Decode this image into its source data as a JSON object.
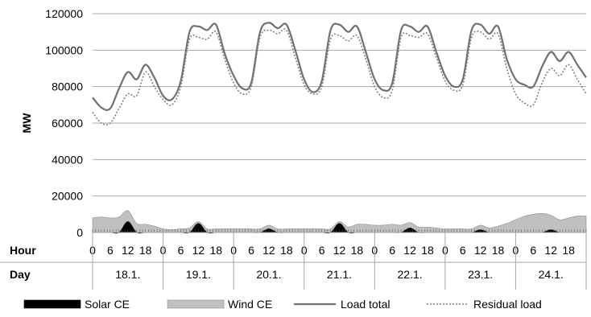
{
  "chart_data": {
    "type": "line",
    "ylabel": "MW",
    "ylim": [
      0,
      120000
    ],
    "y_ticks": [
      "0",
      "20000",
      "40000",
      "60000",
      "80000",
      "100000",
      "120000"
    ],
    "grid": "horizontal",
    "legend_position": "bottom",
    "x_rows": [
      {
        "label": "Hour",
        "ticks": [
          "0",
          "6",
          "12",
          "18"
        ]
      },
      {
        "label": "Day",
        "ticks": [
          "18.1.",
          "19.1.",
          "20.1.",
          "21.1.",
          "22.1.",
          "23.1.",
          "24.1."
        ]
      }
    ],
    "x": [
      0,
      3,
      6,
      9,
      12,
      15,
      18,
      21,
      24,
      27,
      30,
      33,
      36,
      39,
      42,
      45,
      48,
      51,
      54,
      57,
      60,
      63,
      66,
      69,
      72,
      75,
      78,
      81,
      84,
      87,
      90,
      93,
      96,
      99,
      102,
      105,
      108,
      111,
      114,
      117,
      120,
      123,
      126,
      129,
      132,
      135,
      138,
      141,
      144,
      147,
      150,
      153,
      156,
      159,
      162,
      165,
      168
    ],
    "series": [
      {
        "name": "Solar CE",
        "type": "area",
        "color": "#000000",
        "values": [
          0,
          0,
          0,
          0,
          6000,
          0,
          0,
          0,
          0,
          0,
          0,
          0,
          5000,
          0,
          0,
          0,
          0,
          0,
          0,
          0,
          2000,
          0,
          0,
          0,
          0,
          0,
          0,
          0,
          5000,
          0,
          0,
          0,
          0,
          0,
          0,
          0,
          2500,
          0,
          0,
          0,
          0,
          0,
          0,
          0,
          1500,
          0,
          0,
          0,
          0,
          0,
          0,
          0,
          1500,
          0,
          0,
          0,
          0
        ]
      },
      {
        "name": "Wind CE",
        "type": "area",
        "color": "#c0c0c0",
        "values": [
          8000,
          8500,
          8000,
          8500,
          12000,
          5000,
          4500,
          3500,
          2000,
          1500,
          2000,
          2500,
          6000,
          2000,
          2000,
          2000,
          2000,
          2000,
          2000,
          2000,
          4000,
          2000,
          2000,
          2000,
          2000,
          2000,
          2000,
          2000,
          6000,
          3000,
          4500,
          4500,
          4000,
          4000,
          4500,
          4000,
          5500,
          3000,
          3000,
          2500,
          2000,
          2000,
          2000,
          2000,
          4000,
          2500,
          3500,
          5000,
          7000,
          9000,
          10000,
          10500,
          9500,
          7000,
          8000,
          9000,
          9000
        ]
      },
      {
        "name": "Load total",
        "type": "line",
        "color": "#707070",
        "values": [
          74000,
          68500,
          68000,
          79000,
          88000,
          84000,
          92000,
          85000,
          75000,
          73000,
          83000,
          110000,
          113000,
          111000,
          114000,
          98000,
          86000,
          79000,
          82000,
          110000,
          115000,
          112000,
          114000,
          100000,
          84000,
          77000,
          83000,
          111000,
          114000,
          110000,
          113000,
          99000,
          84000,
          78000,
          82000,
          111000,
          113000,
          110000,
          113000,
          99000,
          86000,
          80000,
          84000,
          111000,
          114000,
          109000,
          113000,
          95000,
          84000,
          81000,
          80000,
          91000,
          99000,
          94000,
          99000,
          92000,
          85000
        ]
      },
      {
        "name": "Residual load",
        "type": "line",
        "color": "#808080",
        "values": [
          66000,
          60000,
          60000,
          68000,
          76000,
          75000,
          88000,
          80000,
          73000,
          70000,
          80000,
          106000,
          107000,
          106000,
          110000,
          95000,
          82000,
          76000,
          80000,
          107000,
          111000,
          109000,
          111000,
          96000,
          81000,
          76000,
          80000,
          106000,
          108000,
          105000,
          108000,
          95000,
          80000,
          74000,
          78000,
          107000,
          108000,
          107000,
          109000,
          96000,
          83000,
          78000,
          81000,
          107000,
          110000,
          106000,
          109000,
          90000,
          76000,
          71000,
          70000,
          82000,
          90000,
          86000,
          92000,
          84000,
          76000
        ]
      }
    ]
  }
}
